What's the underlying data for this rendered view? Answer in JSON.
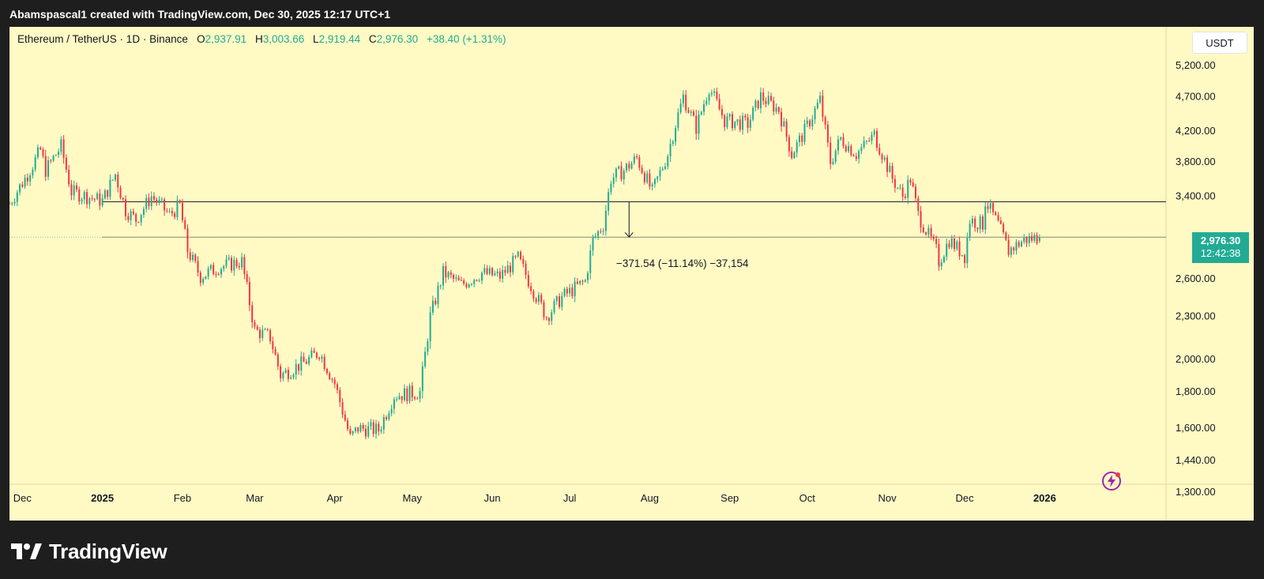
{
  "header": {
    "attribution": "Abamspascal1 created with TradingView.com, Dec 30, 2025 12:17 UTC+1"
  },
  "legend": {
    "symbol": "Ethereum / TetherUS · 1D · Binance",
    "open_label": "O",
    "open": "2,937.91",
    "high_label": "H",
    "high": "3,003.66",
    "low_label": "L",
    "low": "2,919.44",
    "close_label": "C",
    "close": "2,976.30",
    "change": "+38.40 (+1.31%)"
  },
  "currency": "USDT",
  "price_tag": {
    "price": "2,976.30",
    "countdown": "12:42:38"
  },
  "measure_label": "−371.54 (−11.14%) −37,154",
  "footer": {
    "brand": "TradingView"
  },
  "colors": {
    "up": "#22ab94",
    "down": "#f23645",
    "background": "#fff9c4",
    "frame": "#1e1e1e"
  },
  "icons": {
    "footer_logo": "tradingview-logo-icon",
    "bolt": "lightning-bolt-icon"
  },
  "chart_data": {
    "type": "candlestick",
    "symbol": "Ethereum / TetherUS",
    "interval": "1D",
    "exchange": "Binance",
    "y_scale": "log",
    "ylim": [
      1300,
      5600
    ],
    "y_ticks": [
      5200,
      4700,
      4200,
      3800,
      3400,
      2600,
      2300,
      2000,
      1800,
      1600,
      1440,
      1300
    ],
    "y_tick_labels": [
      "5,200.00",
      "4,700.00",
      "4,200.00",
      "3,800.00",
      "3,400.00",
      "2,600.00",
      "2,300.00",
      "2,000.00",
      "1,800.00",
      "1,600.00",
      "1,440.00",
      "1,300.00"
    ],
    "x_labels": [
      "Dec",
      "2025",
      "Feb",
      "Mar",
      "Apr",
      "May",
      "Jun",
      "Jul",
      "Aug",
      "Sep",
      "Oct",
      "Nov",
      "Dec",
      "2026"
    ],
    "x_label_dates": [
      "2024-12-01",
      "2025-01-01",
      "2025-02-01",
      "2025-03-01",
      "2025-04-01",
      "2025-05-01",
      "2025-06-01",
      "2025-07-01",
      "2025-08-01",
      "2025-09-01",
      "2025-10-01",
      "2025-11-01",
      "2025-12-01",
      "2026-01-01"
    ],
    "x_range": [
      "2024-11-26",
      "2026-02-17"
    ],
    "horizontal_levels": [
      3340,
      2976.3
    ],
    "measure": {
      "from": 3340,
      "to": 2976.3,
      "date": "2025-07-24"
    },
    "price_path": [
      [
        "2024-11-26",
        3320
      ],
      [
        "2024-12-03",
        3650
      ],
      [
        "2024-12-08",
        3950
      ],
      [
        "2024-12-10",
        3700
      ],
      [
        "2024-12-16",
        4000
      ],
      [
        "2024-12-20",
        3450
      ],
      [
        "2024-12-28",
        3380
      ],
      [
        "2025-01-01",
        3350
      ],
      [
        "2025-01-06",
        3650
      ],
      [
        "2025-01-10",
        3250
      ],
      [
        "2025-01-14",
        3150
      ],
      [
        "2025-01-20",
        3400
      ],
      [
        "2025-01-27",
        3200
      ],
      [
        "2025-01-31",
        3300
      ],
      [
        "2025-02-03",
        2850
      ],
      [
        "2025-02-08",
        2620
      ],
      [
        "2025-02-15",
        2700
      ],
      [
        "2025-02-24",
        2750
      ],
      [
        "2025-03-01",
        2200
      ],
      [
        "2025-03-07",
        2150
      ],
      [
        "2025-03-11",
        1900
      ],
      [
        "2025-03-20",
        1980
      ],
      [
        "2025-03-26",
        2050
      ],
      [
        "2025-04-01",
        1850
      ],
      [
        "2025-04-07",
        1550
      ],
      [
        "2025-04-10",
        1600
      ],
      [
        "2025-04-18",
        1590
      ],
      [
        "2025-04-24",
        1780
      ],
      [
        "2025-05-04",
        1800
      ],
      [
        "2025-05-08",
        2300
      ],
      [
        "2025-05-13",
        2650
      ],
      [
        "2025-05-20",
        2550
      ],
      [
        "2025-05-28",
        2650
      ],
      [
        "2025-06-04",
        2620
      ],
      [
        "2025-06-11",
        2780
      ],
      [
        "2025-06-17",
        2500
      ],
      [
        "2025-06-22",
        2300
      ],
      [
        "2025-06-28",
        2450
      ],
      [
        "2025-07-07",
        2580
      ],
      [
        "2025-07-10",
        2950
      ],
      [
        "2025-07-14",
        3100
      ],
      [
        "2025-07-17",
        3600
      ],
      [
        "2025-07-22",
        3700
      ],
      [
        "2025-07-27",
        3850
      ],
      [
        "2025-08-02",
        3450
      ],
      [
        "2025-08-08",
        3900
      ],
      [
        "2025-08-11",
        4300
      ],
      [
        "2025-08-14",
        4700
      ],
      [
        "2025-08-19",
        4250
      ],
      [
        "2025-08-24",
        4850
      ],
      [
        "2025-08-30",
        4350
      ],
      [
        "2025-09-08",
        4300
      ],
      [
        "2025-09-13",
        4700
      ],
      [
        "2025-09-20",
        4500
      ],
      [
        "2025-09-25",
        3900
      ],
      [
        "2025-09-30",
        4200
      ],
      [
        "2025-10-06",
        4650
      ],
      [
        "2025-10-10",
        3800
      ],
      [
        "2025-10-14",
        4100
      ],
      [
        "2025-10-20",
        3900
      ],
      [
        "2025-10-27",
        4150
      ],
      [
        "2025-11-03",
        3600
      ],
      [
        "2025-11-07",
        3400
      ],
      [
        "2025-11-10",
        3600
      ],
      [
        "2025-11-13",
        3200
      ],
      [
        "2025-11-20",
        2850
      ],
      [
        "2025-11-21",
        2750
      ],
      [
        "2025-11-25",
        2950
      ],
      [
        "2025-12-01",
        2800
      ],
      [
        "2025-12-03",
        3150
      ],
      [
        "2025-12-08",
        3100
      ],
      [
        "2025-12-09",
        3350
      ],
      [
        "2025-12-14",
        3100
      ],
      [
        "2025-12-18",
        2850
      ],
      [
        "2025-12-24",
        2950
      ],
      [
        "2025-12-30",
        2976.3
      ]
    ],
    "last_candle": {
      "open": 2937.91,
      "high": 3003.66,
      "low": 2919.44,
      "close": 2976.3
    }
  }
}
